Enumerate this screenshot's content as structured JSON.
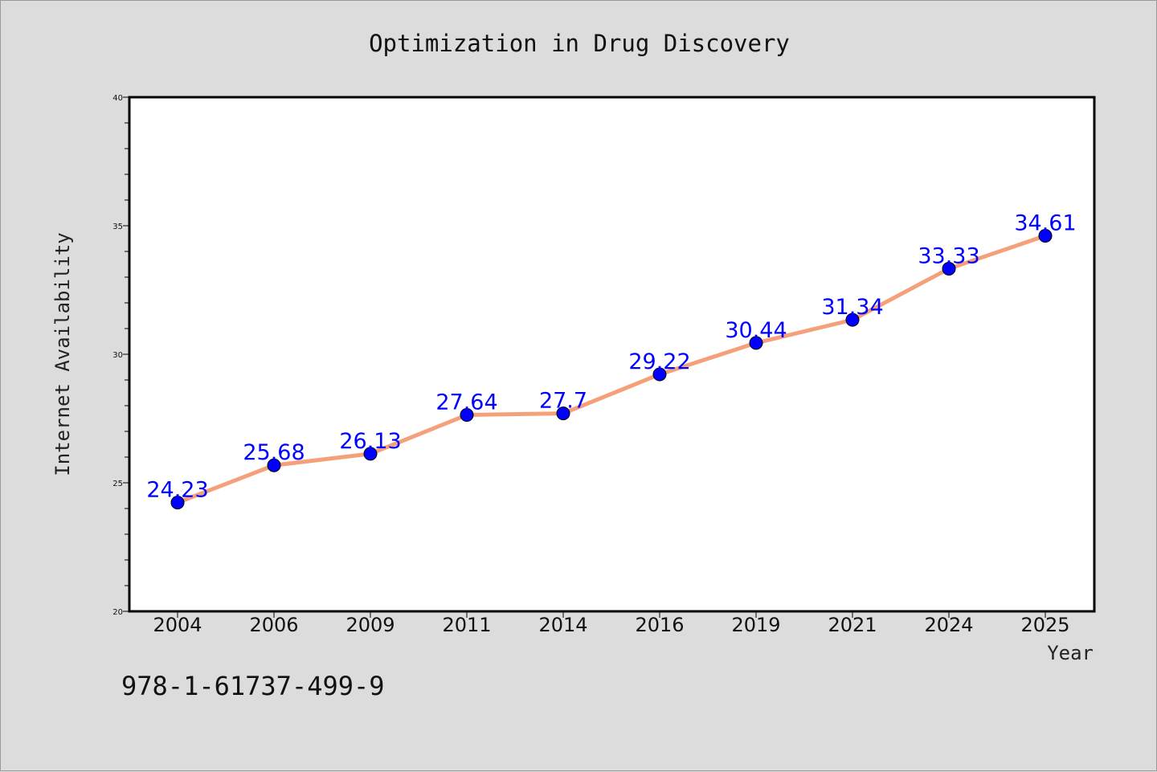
{
  "chart_data": {
    "type": "line",
    "title": "Optimization in Drug Discovery",
    "xlabel": "Year",
    "ylabel": "Internet Availability",
    "categories": [
      "2004",
      "2006",
      "2009",
      "2011",
      "2014",
      "2016",
      "2019",
      "2021",
      "2024",
      "2025"
    ],
    "values": [
      24.23,
      25.68,
      26.13,
      27.64,
      27.7,
      29.22,
      30.44,
      31.34,
      33.33,
      34.61
    ],
    "data_labels": [
      "24.23",
      "25.68",
      "26.13",
      "27.64",
      "27.7",
      "29.22",
      "30.44",
      "31.34",
      "33.33",
      "34.61"
    ],
    "ylim": [
      20,
      40
    ],
    "yticks": [
      "20",
      "25",
      "30",
      "35",
      "40"
    ],
    "grid": false,
    "line_color": "#f4a07a",
    "marker_color": "#0000ff",
    "label_color": "#0000ff"
  },
  "annotation": "978-1-61737-499-9"
}
